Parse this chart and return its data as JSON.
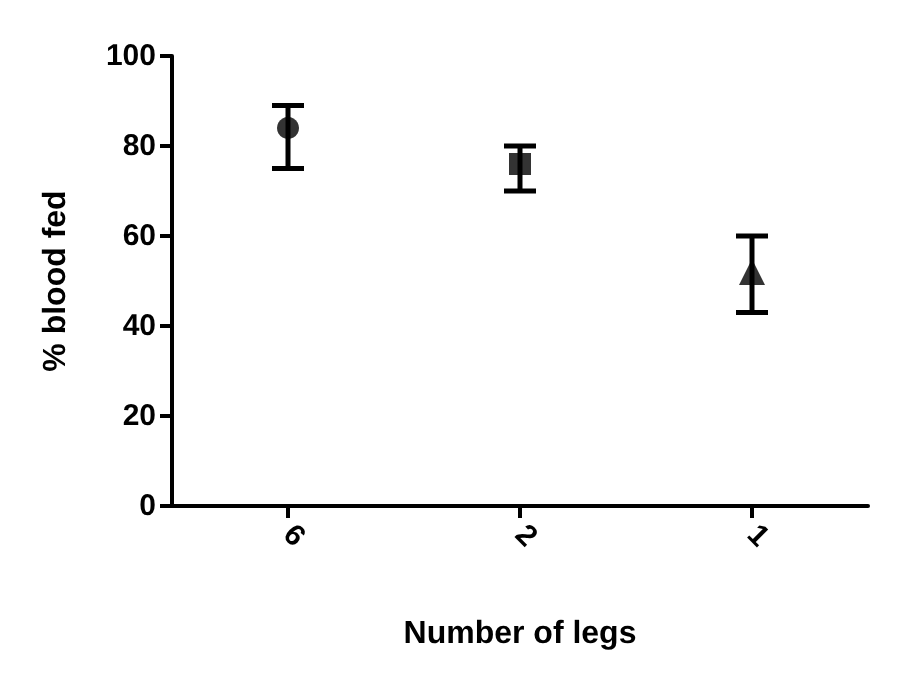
{
  "chart_data": {
    "type": "scatter",
    "xlabel": "Number of legs",
    "ylabel": "% blood fed",
    "categories": [
      "6",
      "2",
      "1"
    ],
    "series": [
      {
        "color": "#000000",
        "marker": "circle",
        "values": [
          84,
          null,
          null
        ],
        "errors": [
          [
            75,
            89
          ],
          null,
          null
        ]
      },
      {
        "color": "#000000",
        "marker": "square",
        "values": [
          null,
          76,
          null
        ],
        "errors": [
          null,
          [
            70,
            80
          ],
          null
        ]
      },
      {
        "color": "#000000",
        "marker": "triangle",
        "values": [
          null,
          null,
          52
        ],
        "errors": [
          null,
          null,
          [
            43,
            60
          ]
        ]
      }
    ],
    "ylim": [
      0,
      100
    ],
    "yticks": [
      0,
      20,
      40,
      60,
      80,
      100
    ],
    "grid": false
  }
}
